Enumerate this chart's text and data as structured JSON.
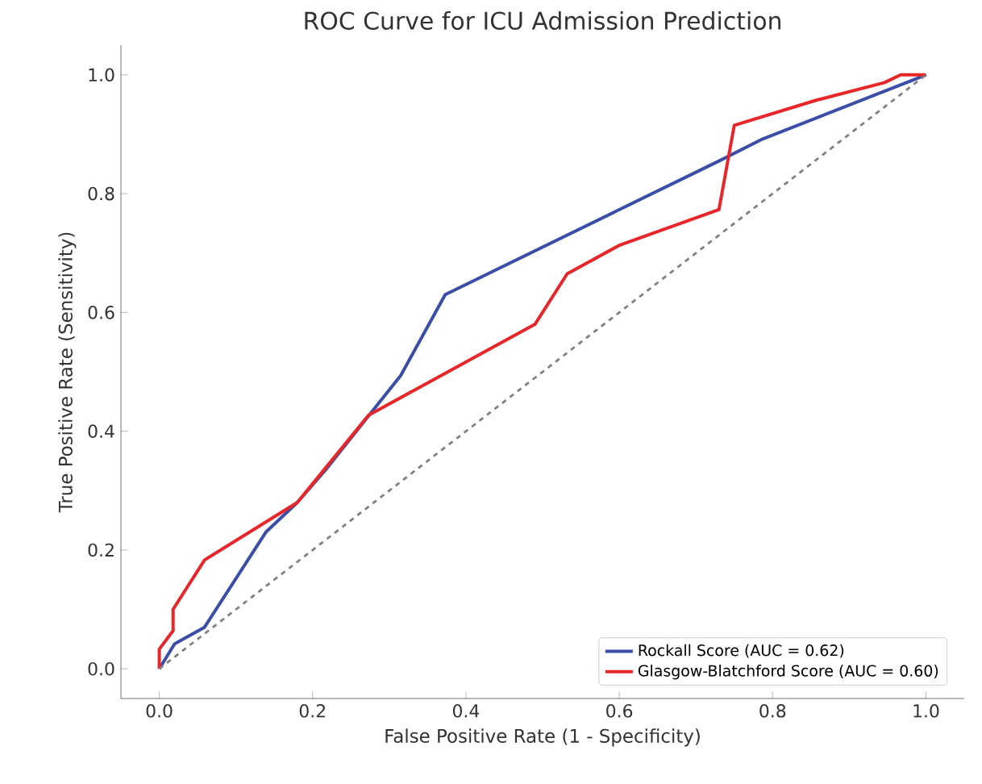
{
  "chart_data": {
    "type": "line",
    "title": "ROC Curve for ICU Admission Prediction",
    "xlabel": "False Positive Rate (1 - Specificity)",
    "ylabel": "True Positive Rate (Sensitivity)",
    "xlim": [
      -0.05,
      1.05
    ],
    "ylim": [
      -0.05,
      1.05
    ],
    "xticks": [
      {
        "value": 0,
        "label": "0.0"
      },
      0.2,
      0.4,
      0.6,
      0.8,
      {
        "value": 1,
        "label": "1.0"
      }
    ],
    "yticks": [
      {
        "value": 0,
        "label": "0.0"
      },
      0.2,
      0.4,
      0.6,
      0.8,
      {
        "value": 1,
        "label": "1.0"
      }
    ],
    "legend": "bottom right",
    "grid": false,
    "series": [
      {
        "name": "Rockall Score (AUC = 0.62)",
        "color": "#3a4ea8",
        "x": [
          0,
          0.02,
          0.059,
          0.139,
          0.18,
          0.217,
          0.315,
          0.373,
          0.73,
          0.787,
          1
        ],
        "values": [
          0,
          0.042,
          0.07,
          0.23,
          0.28,
          0.335,
          0.494,
          0.63,
          0.855,
          0.892,
          1
        ]
      },
      {
        "name": "Glasgow-Blatchford Score (AUC = 0.60)",
        "color": "#e8262a",
        "x": [
          0,
          0,
          0.018,
          0.018,
          0.059,
          0.18,
          0.273,
          0.49,
          0.532,
          0.6,
          0.73,
          0.75,
          0.856,
          0.946,
          0.967,
          1
        ],
        "values": [
          0,
          0.033,
          0.064,
          0.1,
          0.183,
          0.28,
          0.427,
          0.58,
          0.665,
          0.713,
          0.773,
          0.915,
          0.957,
          0.987,
          1.0,
          1
        ]
      },
      {
        "color": "#808080",
        "line_style": "dashed",
        "x": [
          0,
          1
        ],
        "values": [
          0,
          1
        ]
      }
    ]
  }
}
